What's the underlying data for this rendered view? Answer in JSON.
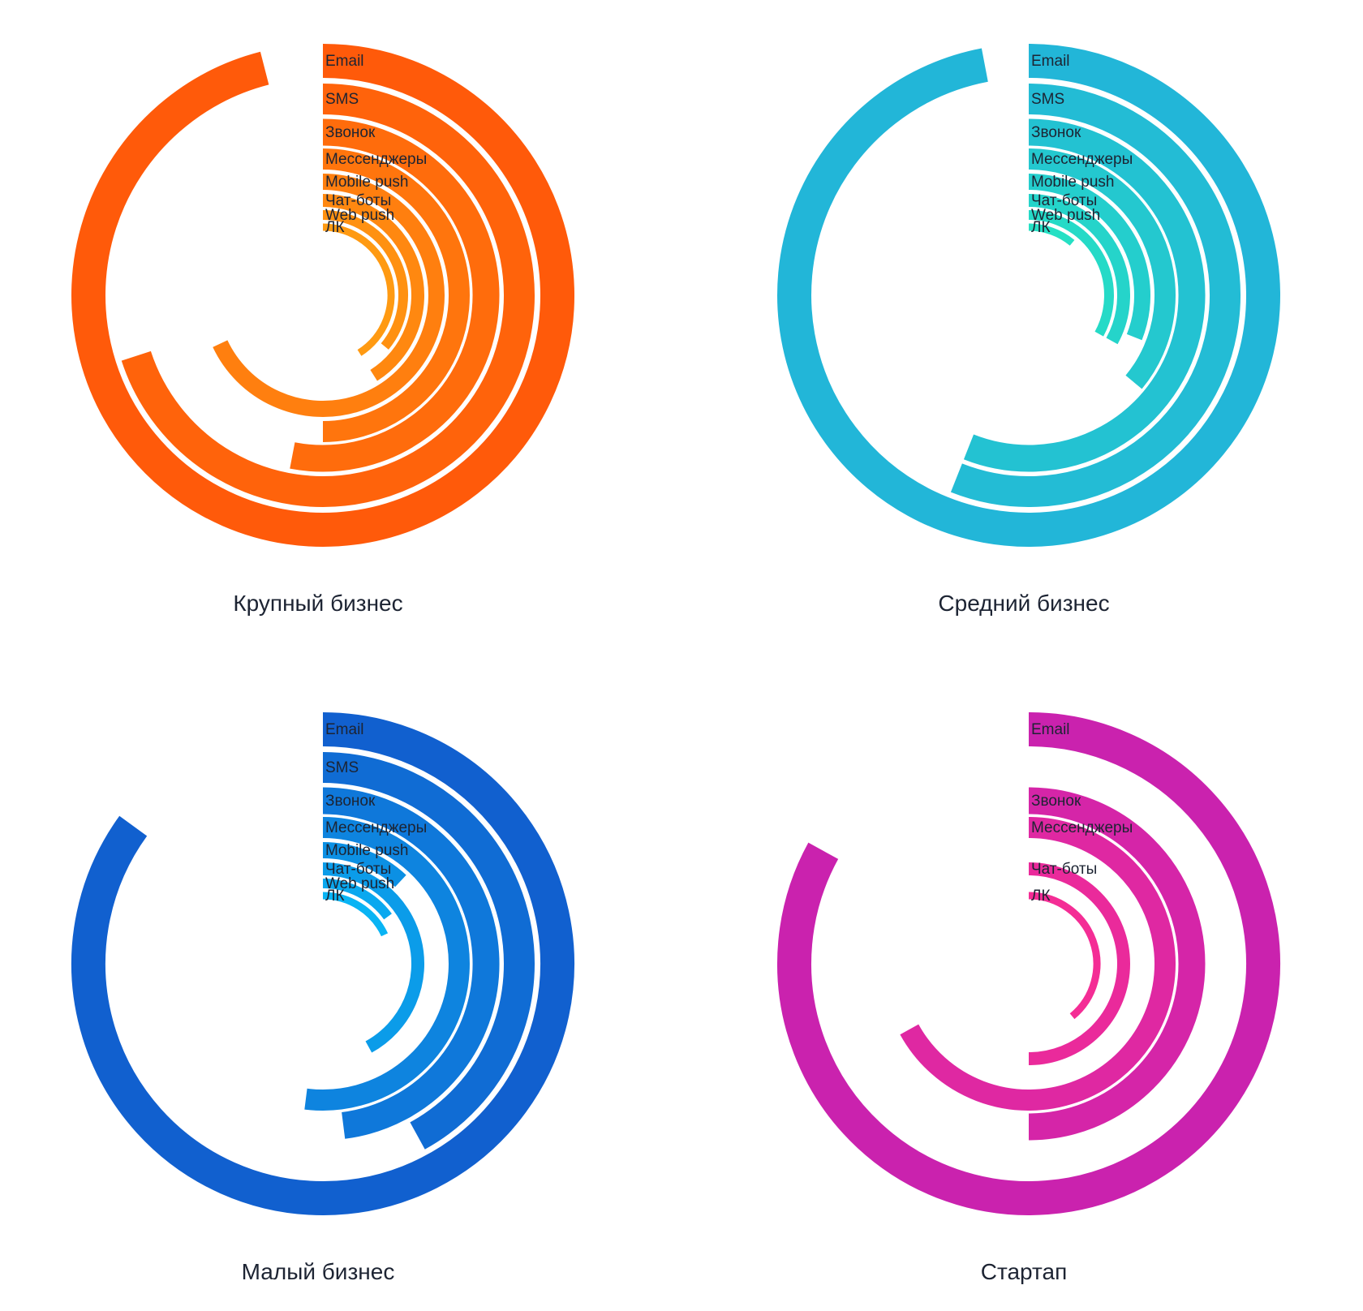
{
  "chart_data": [
    {
      "type": "radial-bar",
      "title": "Крупный бизнес",
      "categories": [
        "Email",
        "SMS",
        "Звонок",
        "Мессенджеры",
        "Mobile push",
        "Чат-боты",
        "Web push",
        "ЛК"
      ],
      "values": [
        96,
        70,
        53,
        50,
        68,
        41,
        36,
        41
      ],
      "value_labels": [
        "96%",
        "70%",
        "53%",
        "50%",
        "68%",
        "41%",
        "36%",
        "41%"
      ],
      "colors": {
        "outer": "#ff5a0a",
        "inner": "#ff9a12"
      }
    },
    {
      "type": "radial-bar",
      "title": "Средний бизнес",
      "categories": [
        "Email",
        "SMS",
        "Звонок",
        "Мессенджеры",
        "Mobile push",
        "Чат-боты",
        "Web push",
        "ЛК"
      ],
      "values": [
        97,
        56,
        56,
        36,
        31,
        33,
        33,
        11
      ],
      "value_labels": [
        "97%",
        "56%",
        "56%",
        "36%",
        "31%",
        "33%",
        "33%",
        "11%"
      ],
      "colors": {
        "outer": "#22b6d8",
        "inner": "#26e0c4"
      }
    },
    {
      "type": "radial-bar",
      "title": "Малый бизнес",
      "categories": [
        "Email",
        "SMS",
        "Звонок",
        "Мессенджеры",
        "Mobile push",
        "Чат-боты",
        "Web push",
        "ЛК"
      ],
      "values": [
        85,
        42,
        48,
        52,
        12,
        42,
        15,
        18
      ],
      "value_labels": [
        "85%",
        "42%",
        "48%",
        "52%",
        "12%",
        "42%",
        "15%",
        "18%"
      ],
      "colors": {
        "outer": "#1160cf",
        "inner": "#09b4f4"
      }
    },
    {
      "type": "radial-bar",
      "title": "Стартап",
      "categories": [
        "Email",
        "Звонок",
        "Мессенджеры",
        "Чат-боты",
        "ЛК"
      ],
      "values": [
        83,
        50,
        67,
        50,
        39
      ],
      "value_labels": [
        "83%",
        "50%",
        "67%",
        "50%",
        "39%"
      ],
      "colors": {
        "outer": "#ca22ae",
        "inner": "#f42d95"
      }
    }
  ]
}
